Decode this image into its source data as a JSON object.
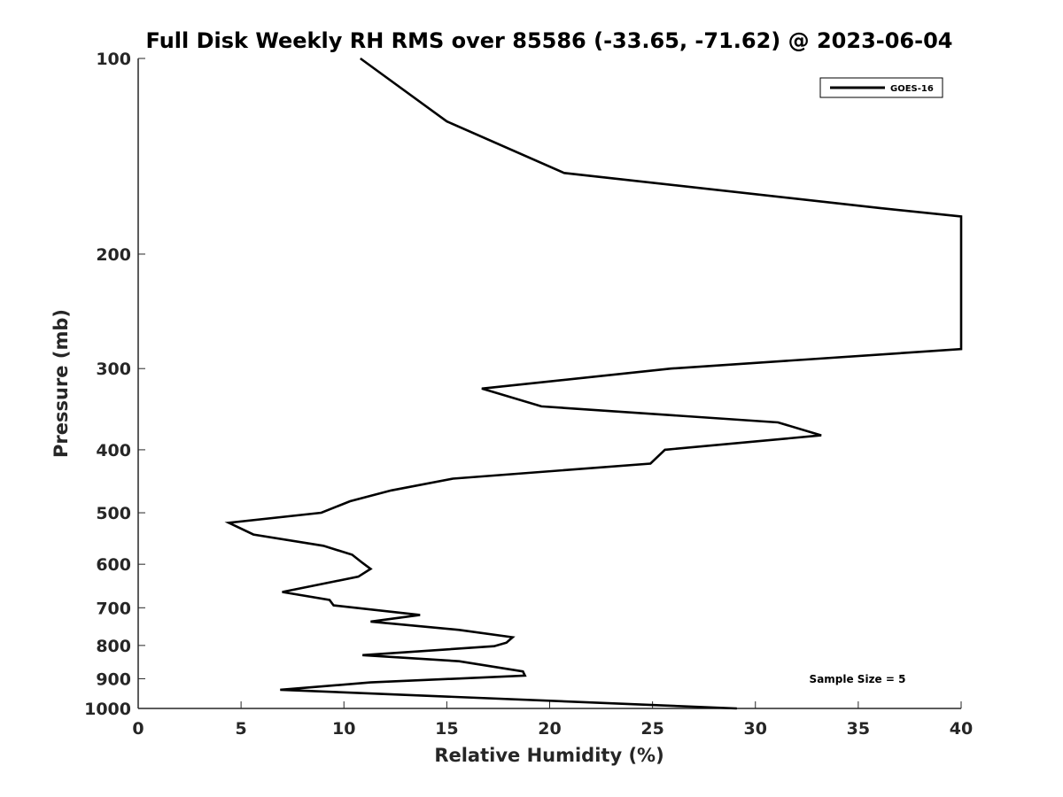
{
  "chart_data": {
    "type": "line",
    "title": "Full Disk Weekly RH RMS over 85586 (-33.65, -71.62) @ 2023-06-04",
    "xlabel": "Relative Humidity (%)",
    "ylabel": "Pressure (mb)",
    "xlim": [
      0,
      40
    ],
    "ylim": [
      100,
      1000
    ],
    "yscale": "log",
    "y_inverted": true,
    "grid": false,
    "legend_position": "top-right",
    "xticks": [
      0,
      5,
      10,
      15,
      20,
      25,
      30,
      35,
      40
    ],
    "yticks": [
      100,
      200,
      300,
      400,
      500,
      600,
      700,
      800,
      900,
      1000
    ],
    "series": [
      {
        "name": "GOES-16",
        "color": "#000000",
        "points": [
          [
            10.8,
            100
          ],
          [
            15.0,
            125
          ],
          [
            20.7,
            150
          ],
          [
            36.1,
            170
          ],
          [
            40.0,
            175
          ],
          [
            40.0,
            280
          ],
          [
            25.9,
            300
          ],
          [
            16.7,
            322
          ],
          [
            19.6,
            343
          ],
          [
            31.1,
            363
          ],
          [
            33.2,
            380
          ],
          [
            25.6,
            400
          ],
          [
            24.9,
            420
          ],
          [
            15.3,
            443
          ],
          [
            12.3,
            462
          ],
          [
            10.3,
            480
          ],
          [
            8.9,
            500
          ],
          [
            4.4,
            518
          ],
          [
            5.6,
            540
          ],
          [
            9.0,
            562
          ],
          [
            10.4,
            580
          ],
          [
            10.9,
            597
          ],
          [
            11.3,
            610
          ],
          [
            10.7,
            627
          ],
          [
            7.0,
            662
          ],
          [
            9.3,
            681
          ],
          [
            9.5,
            694
          ],
          [
            13.7,
            718
          ],
          [
            11.3,
            735
          ],
          [
            15.6,
            757
          ],
          [
            18.2,
            777
          ],
          [
            17.9,
            792
          ],
          [
            17.3,
            802
          ],
          [
            10.9,
            828
          ],
          [
            15.6,
            846
          ],
          [
            18.7,
            877
          ],
          [
            18.8,
            890
          ],
          [
            11.3,
            912
          ],
          [
            6.9,
            936
          ],
          [
            29.1,
            1000
          ]
        ]
      }
    ],
    "annotations": [
      "Sample Size = 5"
    ]
  },
  "colors": {
    "line": "#000000",
    "axis": "#262626",
    "background": "#ffffff"
  }
}
